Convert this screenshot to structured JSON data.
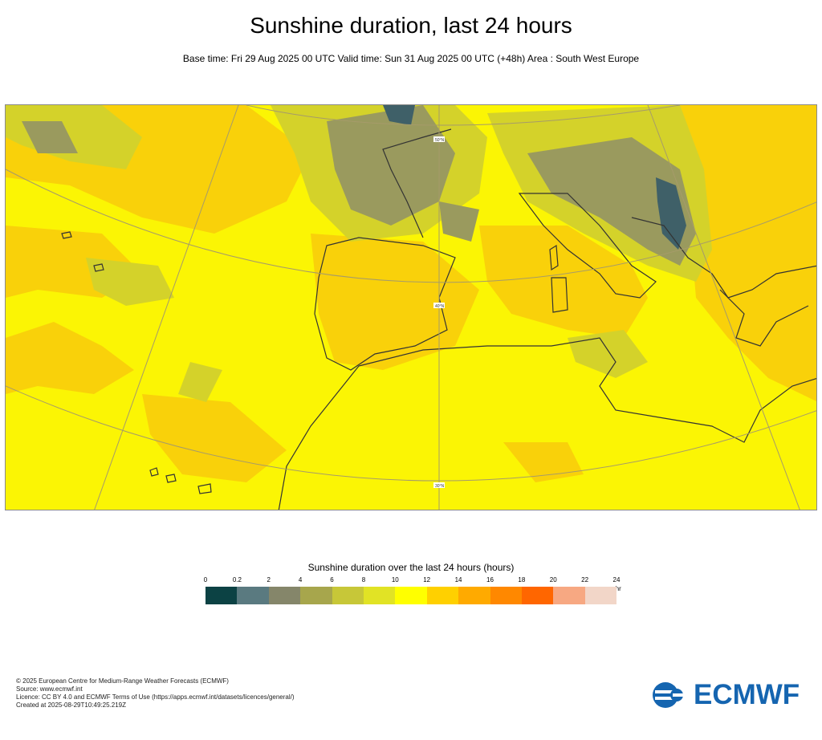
{
  "title": "Sunshine duration, last 24 hours",
  "subtitle": "Base time: Fri 29 Aug 2025 00 UTC Valid time: Sun 31 Aug 2025 00 UTC (+48h) Area : South West Europe",
  "map": {
    "lat_labels": [
      "50°N",
      "40°N",
      "30°N"
    ],
    "colors": {
      "sea_bg": "#fbf504",
      "orange": "#f9d10a",
      "olive": "#d4d22a",
      "grey": "#9a9a5e",
      "dark": "#3f6068",
      "coast": "#333333",
      "grid": "#a69b6a"
    }
  },
  "legend": {
    "title": "Sunshine duration over the last 24 hours (hours)",
    "unit": "-hr",
    "ticks": [
      "0",
      "0.2",
      "2",
      "4",
      "6",
      "8",
      "10",
      "12",
      "14",
      "16",
      "18",
      "20",
      "22",
      "24"
    ],
    "colors": [
      "#0c4244",
      "#5a7a80",
      "#85866a",
      "#a7a64c",
      "#c7c738",
      "#e1e325",
      "#ffff00",
      "#ffd000",
      "#ffaa00",
      "#ff8800",
      "#ff6600",
      "#f7a882",
      "#f2d6c8"
    ]
  },
  "footer": {
    "line1": "© 2025 European Centre for Medium-Range Weather Forecasts (ECMWF)",
    "line2": "Source: www.ecmwf.int",
    "line3": "Licence: CC BY 4.0 and ECMWF Terms of Use (https://apps.ecmwf.int/datasets/licences/general/)",
    "line4": "Created at 2025-08-29T10:49:25.219Z"
  },
  "logo": {
    "text": "ECMWF",
    "color": "#1565b0"
  }
}
